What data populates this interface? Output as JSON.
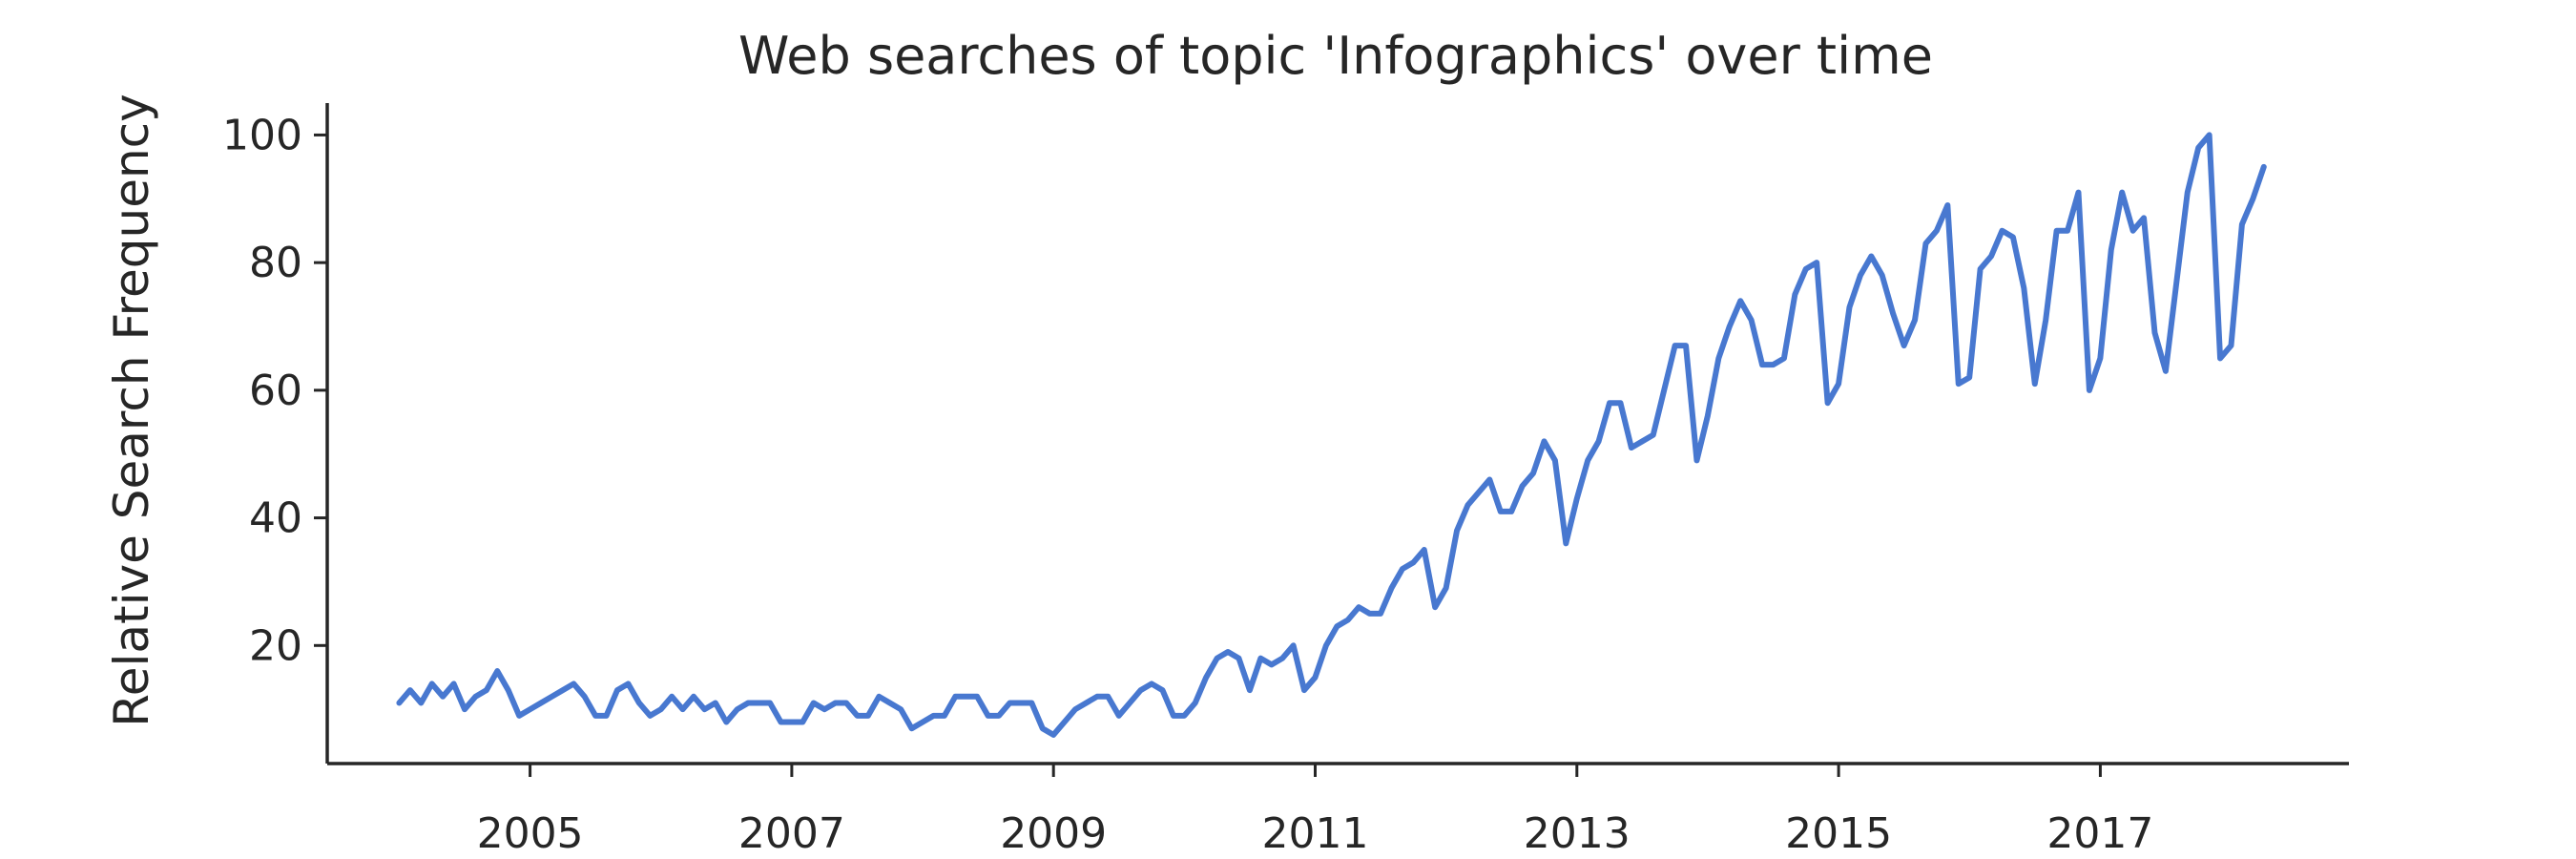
{
  "chart_data": {
    "type": "line",
    "title": "Web searches of topic 'Infographics' over time",
    "xlabel": "",
    "ylabel": "Relative Search Frequency",
    "xlim": [
      2003.45,
      2018.9
    ],
    "ylim": [
      1.5,
      105
    ],
    "x_ticks": [
      2005,
      2007,
      2009,
      2011,
      2013,
      2015,
      2017
    ],
    "y_ticks": [
      20,
      40,
      60,
      80,
      100
    ],
    "grid": false,
    "line_color": "#4878d0",
    "series": [
      {
        "start_year": 2004,
        "step": 0.08333,
        "values": [
          11,
          13,
          11,
          14,
          12,
          14,
          10,
          12,
          13,
          16,
          13,
          9,
          10,
          11,
          12,
          13,
          14,
          12,
          9,
          9,
          13,
          14,
          11,
          9,
          10,
          12,
          10,
          12,
          10,
          11,
          8,
          10,
          11,
          11,
          11,
          8,
          8,
          8,
          11,
          10,
          11,
          11,
          9,
          9,
          12,
          11,
          10,
          7,
          8,
          9,
          9,
          12,
          12,
          12,
          9,
          9,
          11,
          11,
          11,
          7,
          6,
          8,
          10,
          11,
          12,
          12,
          9,
          11,
          13,
          14,
          13,
          9,
          9,
          11,
          15,
          18,
          19,
          18,
          13,
          18,
          17,
          18,
          20,
          13,
          15,
          20,
          23,
          24,
          26,
          25,
          25,
          29,
          32,
          33,
          35,
          26,
          29,
          38,
          42,
          44,
          46,
          41,
          41,
          45,
          47,
          52,
          49,
          36,
          43,
          49,
          52,
          58,
          58,
          51,
          52,
          53,
          60,
          67,
          67,
          49,
          56,
          65,
          70,
          74,
          71,
          64,
          64,
          65,
          75,
          79,
          80,
          58,
          61,
          73,
          78,
          81,
          78,
          72,
          67,
          71,
          83,
          85,
          89,
          61,
          62,
          79,
          81,
          85,
          84,
          76,
          61,
          71,
          85,
          85,
          91,
          60,
          65,
          82,
          91,
          85,
          87,
          69,
          63,
          77,
          91,
          98,
          100,
          65,
          67,
          86,
          90,
          95
        ]
      }
    ]
  }
}
